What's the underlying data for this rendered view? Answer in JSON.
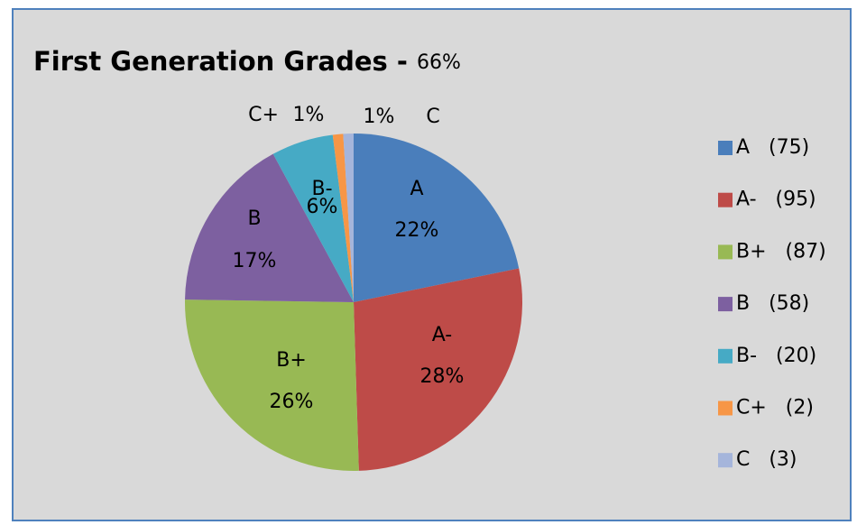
{
  "chart_data": {
    "type": "pie",
    "title": "First Generation Grades -",
    "subtitle": "66%",
    "categories": [
      "A",
      "A-",
      "B+",
      "B",
      "B-",
      "C+",
      "C"
    ],
    "values": [
      22,
      28,
      26,
      17,
      6,
      1,
      1
    ],
    "value_labels": [
      "22%",
      "28%",
      "26%",
      "17%",
      "6%",
      "1%",
      "1%"
    ],
    "legend": [
      "A   (75)",
      "A-   (95)",
      "B+   (87)",
      "B   (58)",
      "B-   (20)",
      "C+   (2)",
      "C   (3)"
    ],
    "colors": [
      "#4a7ebb",
      "#be4b48",
      "#98b954",
      "#7d60a0",
      "#46aac5",
      "#f79646",
      "#a5b5db"
    ],
    "legend_position": "right"
  }
}
